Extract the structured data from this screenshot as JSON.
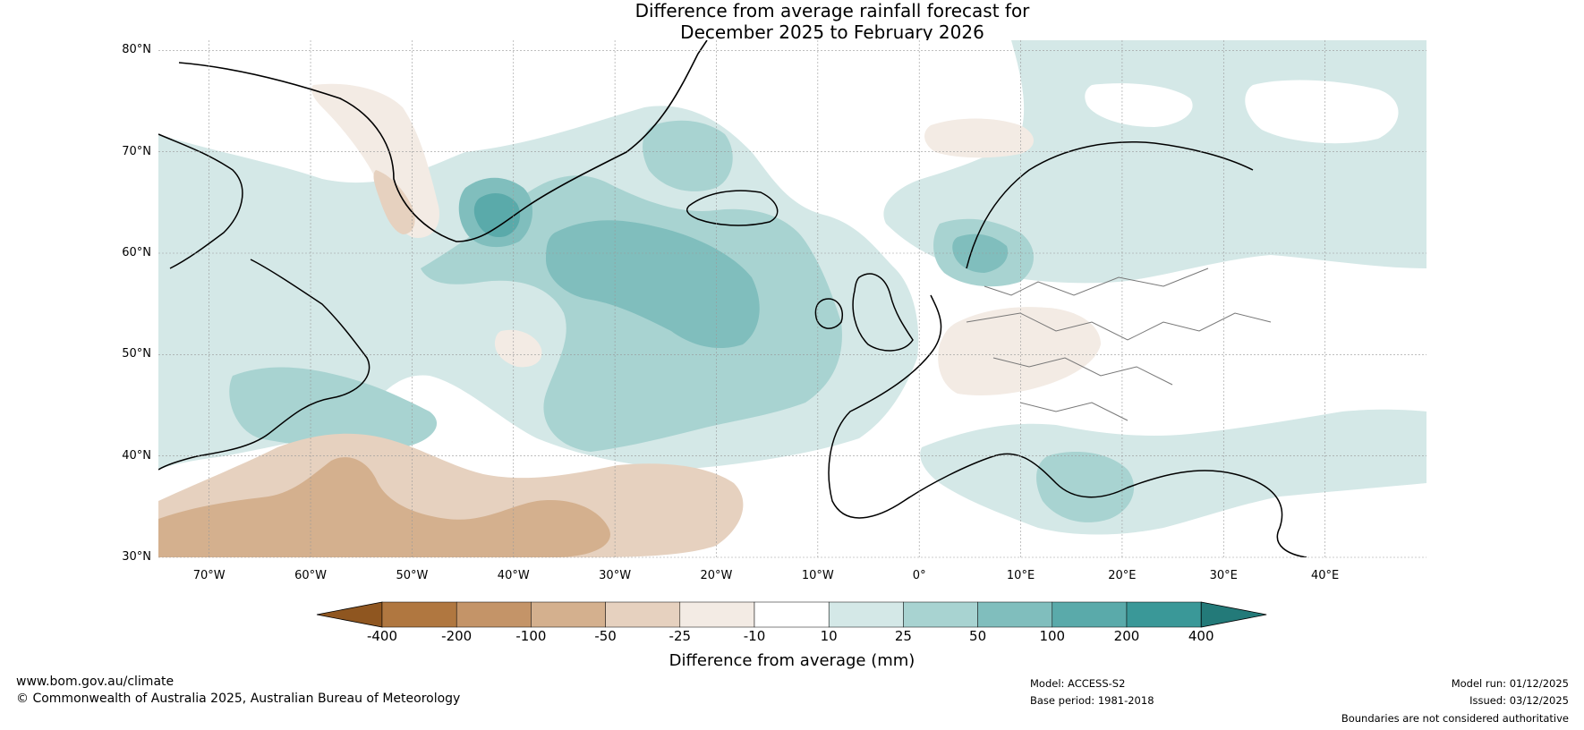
{
  "header": {
    "title_line1": "Difference from average rainfall forecast for",
    "title_line2": "December 2025 to February 2026"
  },
  "map": {
    "lat_labels": [
      "80°N",
      "70°N",
      "60°N",
      "50°N",
      "40°N",
      "30°N"
    ],
    "lon_labels": [
      "70°W",
      "60°W",
      "50°W",
      "40°W",
      "30°W",
      "20°W",
      "10°W",
      "0°",
      "10°E",
      "20°E",
      "30°E",
      "40°E"
    ],
    "lat_values": [
      80,
      70,
      60,
      50,
      40,
      30
    ],
    "lon_values": [
      -70,
      -60,
      -50,
      -40,
      -30,
      -20,
      -10,
      0,
      10,
      20,
      30,
      40
    ]
  },
  "legend": {
    "ticks": [
      "-400",
      "-200",
      "-100",
      "-50",
      "-25",
      "-10",
      "10",
      "25",
      "50",
      "100",
      "200",
      "400"
    ],
    "colors": [
      "#8f5620",
      "#b07740",
      "#c49468",
      "#d4b08e",
      "#e6d1bf",
      "#f3ebe4",
      "#ffffff",
      "#d4e8e7",
      "#a8d3d1",
      "#80bebd",
      "#5aaaaa",
      "#3a9898",
      "#237a79"
    ],
    "axis_title": "Difference from average (mm)"
  },
  "footer": {
    "website": "www.bom.gov.au/climate",
    "copyright": "© Commonwealth of Australia 2025, Australian Bureau of Meteorology",
    "model": "Model: ACCESS-S2",
    "base_period": "Base period: 1981-2018",
    "model_run": "Model run: 01/12/2025",
    "issued": "Issued: 03/12/2025",
    "disclaimer": "Boundaries are not considered authoritative"
  }
}
